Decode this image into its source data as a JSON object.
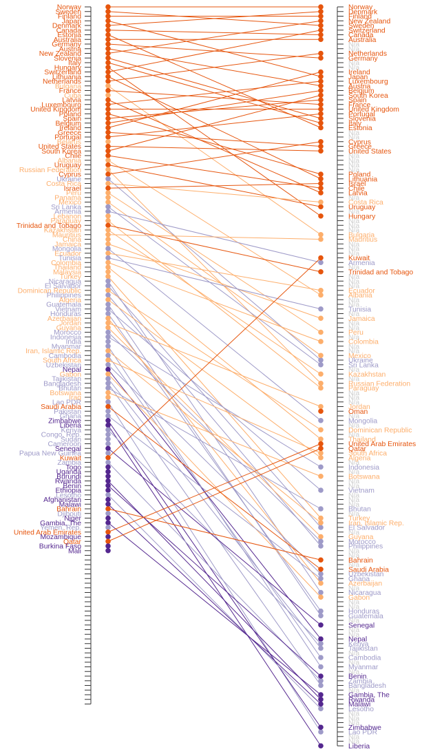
{
  "chart_data": {
    "type": "slope",
    "title": "",
    "xlabel": "",
    "ylabel": "",
    "grid": false,
    "legend": "none",
    "na_label": "N/a",
    "colors": {
      "c1": "#e6550d",
      "c2": "#fdae6b",
      "c3": "#9e9ac8",
      "c4": "#54278f",
      "na": "#cccccc"
    },
    "left_rank_count": 151,
    "right_rank_count": 160,
    "countries": [
      {
        "name": "Norway",
        "left": 1,
        "right": 1,
        "group": "c1"
      },
      {
        "name": "Sweden",
        "left": 2,
        "right": 5,
        "group": "c1"
      },
      {
        "name": "Finland",
        "left": 3,
        "right": 3,
        "group": "c1"
      },
      {
        "name": "Japan",
        "left": 4,
        "right": 16,
        "group": "c1"
      },
      {
        "name": "Denmark",
        "left": 5,
        "right": 2,
        "group": "c1"
      },
      {
        "name": "Canada",
        "left": 6,
        "right": 7,
        "group": "c1"
      },
      {
        "name": "Estonia",
        "left": 7,
        "right": 27,
        "group": "c1"
      },
      {
        "name": "Australia",
        "left": 8,
        "right": 8,
        "group": "c1"
      },
      {
        "name": "Germany",
        "left": 9,
        "right": 12,
        "group": "c1"
      },
      {
        "name": "Austria",
        "left": 10,
        "right": 18,
        "group": "c1"
      },
      {
        "name": "New Zealand",
        "left": 11,
        "right": 4,
        "group": "c1"
      },
      {
        "name": "Slovenia",
        "left": 12,
        "right": 25,
        "group": "c1"
      },
      {
        "name": "Italy",
        "left": 13,
        "right": 26,
        "group": "c1"
      },
      {
        "name": "Hungary",
        "left": 14,
        "right": 46,
        "group": "c1"
      },
      {
        "name": "Switzerland",
        "left": 15,
        "right": 6,
        "group": "c1"
      },
      {
        "name": "Lithuania",
        "left": 16,
        "right": 38,
        "group": "c1"
      },
      {
        "name": "Netherlands",
        "left": 17,
        "right": 11,
        "group": "c1"
      },
      {
        "name": "Bulgaria",
        "left": 18,
        "right": 50,
        "group": "c2"
      },
      {
        "name": "France",
        "left": 19,
        "right": 22,
        "group": "c1"
      },
      {
        "name": "Cuba",
        "left": 20,
        "right": 0,
        "group": "c2"
      },
      {
        "name": "Latvia",
        "left": 21,
        "right": 41,
        "group": "c1"
      },
      {
        "name": "Luxembourg",
        "left": 22,
        "right": 17,
        "group": "c1"
      },
      {
        "name": "United Kingdom",
        "left": 23,
        "right": 23,
        "group": "c1"
      },
      {
        "name": "Poland",
        "left": 24,
        "right": 37,
        "group": "c1"
      },
      {
        "name": "Spain",
        "left": 25,
        "right": 21,
        "group": "c1"
      },
      {
        "name": "Belgium",
        "left": 26,
        "right": 19,
        "group": "c1"
      },
      {
        "name": "Ireland",
        "left": 27,
        "right": 15,
        "group": "c1"
      },
      {
        "name": "Greece",
        "left": 28,
        "right": 31,
        "group": "c1"
      },
      {
        "name": "Portugal",
        "left": 29,
        "right": 24,
        "group": "c1"
      },
      {
        "name": "Belarus",
        "left": 30,
        "right": 0,
        "group": "c2"
      },
      {
        "name": "United States",
        "left": 31,
        "right": 32,
        "group": "c1"
      },
      {
        "name": "South Korea",
        "left": 32,
        "right": 20,
        "group": "c1"
      },
      {
        "name": "Chile",
        "left": 33,
        "right": 40,
        "group": "c1"
      },
      {
        "name": "Albania",
        "left": 34,
        "right": 63,
        "group": "c2"
      },
      {
        "name": "Uruguay",
        "left": 35,
        "right": 44,
        "group": "c1"
      },
      {
        "name": "Russian Federation",
        "left": 36,
        "right": 82,
        "group": "c2"
      },
      {
        "name": "Cyprus",
        "left": 37,
        "right": 30,
        "group": "c1"
      },
      {
        "name": "Ukraine",
        "left": 38,
        "right": 77,
        "group": "c3"
      },
      {
        "name": "Costa Rica",
        "left": 39,
        "right": 43,
        "group": "c2"
      },
      {
        "name": "Israel",
        "left": 40,
        "right": 39,
        "group": "c1"
      },
      {
        "name": "Peru",
        "left": 41,
        "right": 71,
        "group": "c2"
      },
      {
        "name": "Panama",
        "left": 42,
        "right": 0,
        "group": "c2"
      },
      {
        "name": "Mexico",
        "left": 43,
        "right": 76,
        "group": "c2"
      },
      {
        "name": "Sri Lanka",
        "left": 44,
        "right": 78,
        "group": "c3"
      },
      {
        "name": "Armenia",
        "left": 45,
        "right": 56,
        "group": "c3"
      },
      {
        "name": "Lebanon",
        "left": 46,
        "right": 0,
        "group": "c2"
      },
      {
        "name": "Paraguay",
        "left": 47,
        "right": 83,
        "group": "c2"
      },
      {
        "name": "Trinidad and Tobago",
        "left": 48,
        "right": 58,
        "group": "c1"
      },
      {
        "name": "Kazakhstan",
        "left": 49,
        "right": 80,
        "group": "c2"
      },
      {
        "name": "Mauritius",
        "left": 50,
        "right": 51,
        "group": "c2"
      },
      {
        "name": "China",
        "left": 51,
        "right": 0,
        "group": "c2"
      },
      {
        "name": "Jamaica",
        "left": 52,
        "right": 68,
        "group": "c2"
      },
      {
        "name": "Mongolia",
        "left": 53,
        "right": 90,
        "group": "c3"
      },
      {
        "name": "Ecuador",
        "left": 54,
        "right": 62,
        "group": "c2"
      },
      {
        "name": "Tunisia",
        "left": 55,
        "right": 66,
        "group": "c3"
      },
      {
        "name": "Colombia",
        "left": 56,
        "right": 73,
        "group": "c2"
      },
      {
        "name": "Thailand",
        "left": 57,
        "right": 94,
        "group": "c2"
      },
      {
        "name": "Malaysia",
        "left": 58,
        "right": 0,
        "group": "c2"
      },
      {
        "name": "Turkey",
        "left": 59,
        "right": 111,
        "group": "c2"
      },
      {
        "name": "Nicaragua",
        "left": 60,
        "right": 127,
        "group": "c3"
      },
      {
        "name": "El Salvador",
        "left": 61,
        "right": 113,
        "group": "c3"
      },
      {
        "name": "Dominican Republic",
        "left": 62,
        "right": 92,
        "group": "c2"
      },
      {
        "name": "Philippines",
        "left": 63,
        "right": 117,
        "group": "c3"
      },
      {
        "name": "Algeria",
        "left": 64,
        "right": 98,
        "group": "c2"
      },
      {
        "name": "Guatemala",
        "left": 65,
        "right": 132,
        "group": "c3"
      },
      {
        "name": "Vietnam",
        "left": 66,
        "right": 105,
        "group": "c3"
      },
      {
        "name": "Honduras",
        "left": 67,
        "right": 131,
        "group": "c3"
      },
      {
        "name": "Azerbaijan",
        "left": 68,
        "right": 125,
        "group": "c2"
      },
      {
        "name": "Jordan",
        "left": 69,
        "right": 87,
        "group": "c2"
      },
      {
        "name": "Guyana",
        "left": 70,
        "right": 115,
        "group": "c2"
      },
      {
        "name": "Morocco",
        "left": 71,
        "right": 116,
        "group": "c3"
      },
      {
        "name": "Indonesia",
        "left": 72,
        "right": 100,
        "group": "c3"
      },
      {
        "name": "India",
        "left": 73,
        "right": 0,
        "group": "c3"
      },
      {
        "name": "Myanmar",
        "left": 74,
        "right": 143,
        "group": "c3"
      },
      {
        "name": "Iran, Islamic Rep.",
        "left": 75,
        "right": 112,
        "group": "c2"
      },
      {
        "name": "Cambodia",
        "left": 76,
        "right": 141,
        "group": "c3"
      },
      {
        "name": "South Africa",
        "left": 77,
        "right": 97,
        "group": "c2"
      },
      {
        "name": "Uzbekistan",
        "left": 78,
        "right": 123,
        "group": "c3"
      },
      {
        "name": "Nepal",
        "left": 79,
        "right": 137,
        "group": "c4"
      },
      {
        "name": "Gabon",
        "left": 80,
        "right": 128,
        "group": "c2"
      },
      {
        "name": "Tajikistan",
        "left": 81,
        "right": 139,
        "group": "c3"
      },
      {
        "name": "Bangladesh",
        "left": 82,
        "right": 147,
        "group": "c3"
      },
      {
        "name": "Bhutan",
        "left": 83,
        "right": 109,
        "group": "c3"
      },
      {
        "name": "Botswana",
        "left": 84,
        "right": 102,
        "group": "c2"
      },
      {
        "name": "Iraq",
        "left": 85,
        "right": 0,
        "group": "c2"
      },
      {
        "name": "Lao PDR",
        "left": 86,
        "right": 157,
        "group": "c3"
      },
      {
        "name": "Saudi Arabia",
        "left": 87,
        "right": 122,
        "group": "c1"
      },
      {
        "name": "Pakistan",
        "left": 88,
        "right": 0,
        "group": "c3"
      },
      {
        "name": "Ghana",
        "left": 89,
        "right": 124,
        "group": "c3"
      },
      {
        "name": "Zimbabwe",
        "left": 90,
        "right": 156,
        "group": "c4"
      },
      {
        "name": "Liberia",
        "left": 91,
        "right": 160,
        "group": "c4"
      },
      {
        "name": "Kenya",
        "left": 92,
        "right": 138,
        "group": "c3"
      },
      {
        "name": "Congo, Rep.",
        "left": 93,
        "right": 0,
        "group": "c3"
      },
      {
        "name": "Sudan",
        "left": 94,
        "right": 0,
        "group": "c3"
      },
      {
        "name": "Cameroon",
        "left": 95,
        "right": 0,
        "group": "c3"
      },
      {
        "name": "Senegal",
        "left": 96,
        "right": 134,
        "group": "c4"
      },
      {
        "name": "Papua New Guinea",
        "left": 97,
        "right": 0,
        "group": "c3"
      },
      {
        "name": "Kuwait",
        "left": 98,
        "right": 55,
        "group": "c1"
      },
      {
        "name": "Zambia",
        "left": 99,
        "right": 146,
        "group": "c3"
      },
      {
        "name": "Togo",
        "left": 100,
        "right": 0,
        "group": "c4"
      },
      {
        "name": "Uganda",
        "left": 101,
        "right": 0,
        "group": "c4"
      },
      {
        "name": "Burundi",
        "left": 102,
        "right": 0,
        "group": "c4"
      },
      {
        "name": "Rwanda",
        "left": 103,
        "right": 150,
        "group": "c4"
      },
      {
        "name": "Benin",
        "left": 104,
        "right": 145,
        "group": "c4"
      },
      {
        "name": "Ethiopia",
        "left": 105,
        "right": 0,
        "group": "c4"
      },
      {
        "name": "Lesotho",
        "left": 106,
        "right": 152,
        "group": "c3"
      },
      {
        "name": "Afghanistan",
        "left": 107,
        "right": 0,
        "group": "c4"
      },
      {
        "name": "Malawi",
        "left": 108,
        "right": 151,
        "group": "c4"
      },
      {
        "name": "Bahrain",
        "left": 109,
        "right": 120,
        "group": "c1"
      },
      {
        "name": "Djibouti",
        "left": 110,
        "right": 0,
        "group": "c3"
      },
      {
        "name": "Niger",
        "left": 111,
        "right": 0,
        "group": "c4"
      },
      {
        "name": "Gambia, The",
        "left": 112,
        "right": 149,
        "group": "c4"
      },
      {
        "name": "Yemen, Rep.",
        "left": 113,
        "right": 0,
        "group": "c3"
      },
      {
        "name": "United Arab Emirates",
        "left": 114,
        "right": 95,
        "group": "c1"
      },
      {
        "name": "Mozambique",
        "left": 115,
        "right": 0,
        "group": "c4"
      },
      {
        "name": "Qatar",
        "left": 116,
        "right": 96,
        "group": "c1"
      },
      {
        "name": "Burkina Faso",
        "left": 117,
        "right": 0,
        "group": "c4"
      },
      {
        "name": "Mali",
        "left": 118,
        "right": 0,
        "group": "c4"
      },
      {
        "name": "Oman",
        "left": 0,
        "right": 88,
        "group": "c1"
      }
    ]
  }
}
